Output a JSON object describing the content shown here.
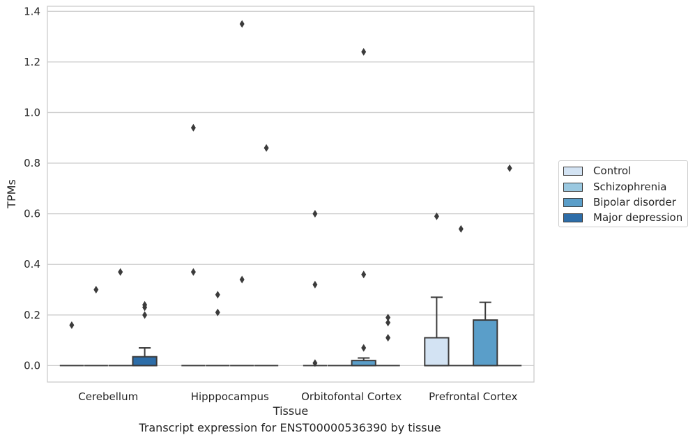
{
  "chart_data": {
    "type": "box",
    "title": "",
    "caption": "Transcript expression for ENST00000536390 by tissue",
    "xlabel": "Tissue",
    "ylabel": "TPMs",
    "ylim": [
      -0.065,
      1.42
    ],
    "yticks": [
      "0.0",
      "0.2",
      "0.4",
      "0.6",
      "0.8",
      "1.0",
      "1.2",
      "1.4"
    ],
    "grid": true,
    "legend_position": "right",
    "categories": [
      "Cerebellum",
      "Hipppocampus",
      "Orbitofontal Cortex",
      "Prefrontal Cortex"
    ],
    "series": [
      {
        "name": "Control",
        "color": "#d3e3f3",
        "boxes": [
          {
            "q1": 0,
            "median": 0,
            "q3": 0,
            "whisker_low": 0,
            "whisker_high": 0,
            "outliers": [
              0.16
            ]
          },
          {
            "q1": 0,
            "median": 0,
            "q3": 0,
            "whisker_low": 0,
            "whisker_high": 0,
            "outliers": [
              0.94,
              0.37
            ]
          },
          {
            "q1": 0,
            "median": 0,
            "q3": 0,
            "whisker_low": 0,
            "whisker_high": 0,
            "outliers": [
              0.6,
              0.32,
              0.01
            ]
          },
          {
            "q1": 0,
            "median": 0,
            "q3": 0.11,
            "whisker_low": 0,
            "whisker_high": 0.27,
            "outliers": [
              0.59
            ]
          }
        ]
      },
      {
        "name": "Schizophrenia",
        "color": "#9ac8e0",
        "boxes": [
          {
            "q1": 0,
            "median": 0,
            "q3": 0,
            "whisker_low": 0,
            "whisker_high": 0,
            "outliers": [
              0.3
            ]
          },
          {
            "q1": 0,
            "median": 0,
            "q3": 0,
            "whisker_low": 0,
            "whisker_high": 0,
            "outliers": [
              0.28,
              0.21
            ]
          },
          {
            "q1": 0,
            "median": 0,
            "q3": 0,
            "whisker_low": 0,
            "whisker_high": 0,
            "outliers": []
          },
          {
            "q1": 0,
            "median": 0,
            "q3": 0,
            "whisker_low": 0,
            "whisker_high": 0,
            "outliers": [
              0.54
            ]
          }
        ]
      },
      {
        "name": "Bipolar disorder",
        "color": "#5a9ec9",
        "boxes": [
          {
            "q1": 0,
            "median": 0,
            "q3": 0,
            "whisker_low": 0,
            "whisker_high": 0,
            "outliers": [
              0.37
            ]
          },
          {
            "q1": 0,
            "median": 0,
            "q3": 0,
            "whisker_low": 0,
            "whisker_high": 0,
            "outliers": [
              1.35,
              0.34
            ]
          },
          {
            "q1": 0,
            "median": 0,
            "q3": 0.02,
            "whisker_low": 0,
            "whisker_high": 0.03,
            "outliers": [
              1.24,
              0.36,
              0.07
            ]
          },
          {
            "q1": 0,
            "median": 0,
            "q3": 0.18,
            "whisker_low": 0,
            "whisker_high": 0.25,
            "outliers": []
          }
        ]
      },
      {
        "name": "Major depression",
        "color": "#2d6da8",
        "boxes": [
          {
            "q1": 0,
            "median": 0,
            "q3": 0.035,
            "whisker_low": 0,
            "whisker_high": 0.07,
            "outliers": [
              0.24,
              0.23,
              0.2
            ]
          },
          {
            "q1": 0,
            "median": 0,
            "q3": 0,
            "whisker_low": 0,
            "whisker_high": 0,
            "outliers": [
              0.86
            ]
          },
          {
            "q1": 0,
            "median": 0,
            "q3": 0,
            "whisker_low": 0,
            "whisker_high": 0,
            "outliers": [
              0.19,
              0.17,
              0.11
            ]
          },
          {
            "q1": 0,
            "median": 0,
            "q3": 0,
            "whisker_low": 0,
            "whisker_high": 0,
            "outliers": [
              0.78
            ]
          }
        ]
      }
    ]
  }
}
